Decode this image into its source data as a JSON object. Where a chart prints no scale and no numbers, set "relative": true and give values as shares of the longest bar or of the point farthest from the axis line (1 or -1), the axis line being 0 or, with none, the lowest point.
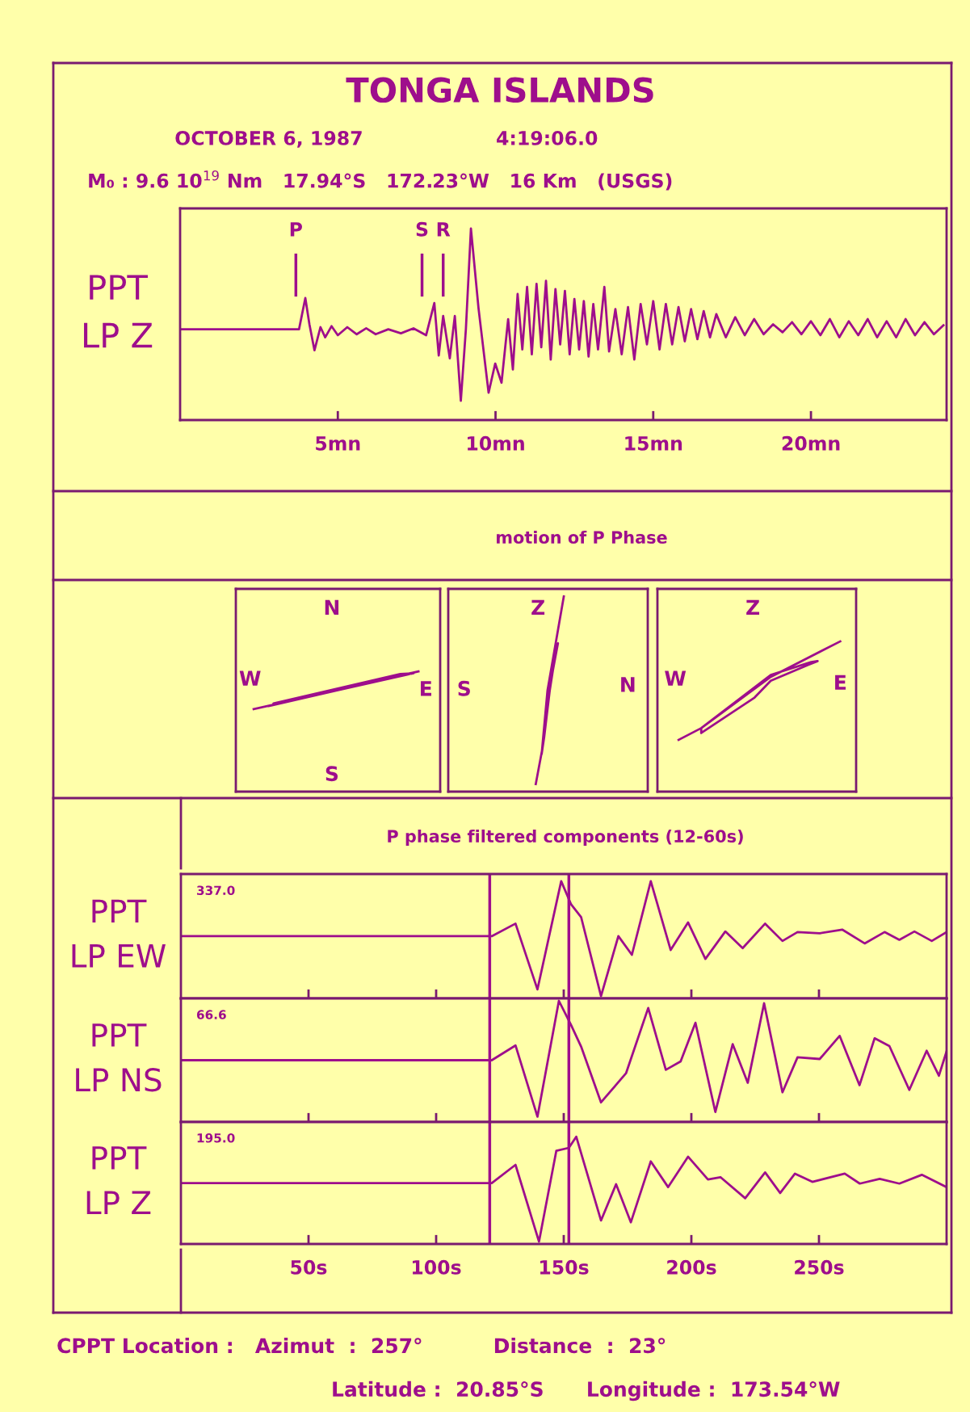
{
  "chart_data": [
    {
      "type": "line",
      "title": "TONGA ISLANDS",
      "subtitle": "OCTOBER 6, 1987                    4:19:06.0\nM₀ : 9.6 10$^{19}$ Nm   17.94°S   172.23°W   16 Km   (USGS)",
      "ylabel": "PPT\nLP Z",
      "relative": true,
      "x": [
        0,
        3.77,
        3.97,
        4.1,
        4.26,
        4.45,
        4.6,
        4.8,
        5.0,
        5.3,
        5.6,
        5.9,
        6.2,
        6.6,
        7.0,
        7.4,
        7.8,
        8.06,
        8.2,
        8.34,
        8.55,
        8.71,
        8.9,
        9.06,
        9.22,
        9.46,
        9.78,
        9.99,
        10.19,
        10.4,
        10.55,
        10.7,
        10.85,
        11.0,
        11.15,
        11.3,
        11.45,
        11.6,
        11.75,
        11.9,
        12.05,
        12.2,
        12.35,
        12.5,
        12.65,
        12.8,
        12.95,
        13.1,
        13.25,
        13.45,
        13.6,
        13.8,
        14.0,
        14.2,
        14.4,
        14.6,
        14.8,
        15.0,
        15.2,
        15.4,
        15.6,
        15.8,
        16.0,
        16.2,
        16.4,
        16.6,
        16.8,
        17.0,
        17.3,
        17.6,
        17.9,
        18.2,
        18.5,
        18.8,
        19.1,
        19.4,
        19.7,
        20.0,
        20.3,
        20.6,
        20.9,
        21.2,
        21.5,
        21.8,
        22.1,
        22.4,
        22.7,
        23.0,
        23.3,
        23.6,
        23.9,
        24.2
      ],
      "series": [
        {
          "color": "#9e0e8c",
          "values": [
            0.474,
            0.474,
            0.637,
            0.5,
            0.364,
            0.485,
            0.432,
            0.49,
            0.443,
            0.485,
            0.448,
            0.479,
            0.448,
            0.474,
            0.453,
            0.479,
            0.443,
            0.611,
            0.337,
            0.543,
            0.322,
            0.543,
            0.101,
            0.474,
            1.0,
            0.585,
            0.143,
            0.295,
            0.195,
            0.527,
            0.264,
            0.658,
            0.369,
            0.695,
            0.343,
            0.711,
            0.38,
            0.727,
            0.316,
            0.684,
            0.395,
            0.674,
            0.343,
            0.632,
            0.369,
            0.621,
            0.332,
            0.606,
            0.369,
            0.695,
            0.358,
            0.579,
            0.343,
            0.59,
            0.316,
            0.606,
            0.395,
            0.621,
            0.369,
            0.606,
            0.395,
            0.59,
            0.411,
            0.579,
            0.422,
            0.569,
            0.432,
            0.553,
            0.432,
            0.537,
            0.443,
            0.527,
            0.448,
            0.5,
            0.458,
            0.511,
            0.448,
            0.516,
            0.443,
            0.527,
            0.432,
            0.516,
            0.443,
            0.527,
            0.432,
            0.516,
            0.432,
            0.527,
            0.443,
            0.511,
            0.448,
            0.495
          ]
        }
      ],
      "xlim": [
        0,
        24.3
      ],
      "xticks": [
        {
          "value": 5,
          "label": "5mn"
        },
        {
          "value": 10,
          "label": "10mn"
        },
        {
          "value": 15,
          "label": "15mn"
        },
        {
          "value": 20,
          "label": "20mn"
        }
      ],
      "tick_labels": "x",
      "ref_lines": [
        {
          "axis": "x",
          "value": 3.67,
          "label": "P"
        },
        {
          "axis": "x",
          "value": 7.67,
          "label": "S"
        },
        {
          "axis": "x",
          "value": 8.34,
          "label": "R"
        }
      ]
    },
    {
      "type": "other",
      "title": "motion of P Phase",
      "annotations": [
        "N",
        "S",
        "W",
        "E"
      ]
    },
    {
      "type": "other",
      "annotations": [
        "Z",
        "S",
        "N"
      ]
    },
    {
      "type": "other",
      "annotations": [
        "Z",
        "W",
        "E"
      ]
    },
    {
      "type": "line",
      "title": "P phase filtered components (12-60s)",
      "ylabel": "PPT\nLP EW",
      "relative": true,
      "annotations": [
        "337.0"
      ],
      "x": [
        0,
        121.8,
        131.1,
        139.7,
        149,
        152.9,
        156.8,
        164.6,
        171.4,
        176.7,
        184.1,
        191.9,
        198.7,
        205.5,
        213.3,
        220.1,
        228.9,
        235.7,
        241.6,
        250.3,
        259.1,
        267.9,
        275.7,
        281.5,
        287.4,
        294.2,
        300
      ],
      "series": [
        {
          "color": "#9e0e8c",
          "values": [
            0.531,
            0.531,
            0.638,
            0.077,
            1.0,
            0.801,
            0.694,
            0.02,
            0.531,
            0.372,
            1.0,
            0.413,
            0.648,
            0.337,
            0.571,
            0.429,
            0.638,
            0.49,
            0.566,
            0.556,
            0.587,
            0.469,
            0.566,
            0.5,
            0.571,
            0.49,
            0.566
          ]
        }
      ],
      "xlim": [
        0,
        300
      ],
      "xticks": [
        {
          "value": 50,
          "label": null
        },
        {
          "value": 100,
          "label": null
        },
        {
          "value": 150,
          "label": null
        },
        {
          "value": 200,
          "label": null
        },
        {
          "value": 250,
          "label": null
        }
      ],
      "tick_labels": false,
      "ref_lines": [
        {
          "axis": "x",
          "value": 121
        },
        {
          "axis": "x",
          "value": 152
        }
      ]
    },
    {
      "type": "line",
      "ylabel": "PPT\nLP NS",
      "relative": true,
      "annotations": [
        "66.6"
      ],
      "x": [
        0,
        121.8,
        131.1,
        139.7,
        148.1,
        152.9,
        156.8,
        164.6,
        174.4,
        183.1,
        190,
        195.8,
        201.6,
        209.4,
        216.2,
        222.1,
        228.5,
        235.7,
        241.6,
        250.3,
        258.1,
        265.9,
        271.8,
        277.6,
        285.4,
        292.2,
        297,
        300
      ],
      "series": [
        {
          "color": "#9e0e8c",
          "values": [
            0.51,
            0.51,
            0.632,
            0.044,
            1.0,
            0.799,
            0.623,
            0.162,
            0.402,
            0.941,
            0.431,
            0.5,
            0.819,
            0.083,
            0.642,
            0.324,
            0.98,
            0.245,
            0.534,
            0.52,
            0.711,
            0.304,
            0.691,
            0.627,
            0.265,
            0.588,
            0.382,
            0.583
          ]
        }
      ],
      "xlim": [
        0,
        300
      ],
      "xticks": [
        {
          "value": 50,
          "label": null
        },
        {
          "value": 100,
          "label": null
        },
        {
          "value": 150,
          "label": null
        },
        {
          "value": 200,
          "label": null
        },
        {
          "value": 250,
          "label": null
        }
      ],
      "tick_labels": false,
      "ref_lines": [
        {
          "axis": "x",
          "value": 121
        },
        {
          "axis": "x",
          "value": 152
        }
      ]
    },
    {
      "type": "line",
      "ylabel": "PPT\nLP Z",
      "relative": true,
      "annotations": [
        "195.0",
        "CPPT Location :   Azimut  :  257°          Distance  :  23°",
        "Latitude :  20.85°S      Longitude :  173.54°W"
      ],
      "x": [
        0,
        121.8,
        131.1,
        140.3,
        147.1,
        152,
        154.9,
        164.6,
        170.5,
        176.3,
        184.1,
        190.9,
        198.7,
        206.5,
        211.4,
        221.1,
        228.9,
        234.8,
        240.6,
        247.4,
        260.1,
        266,
        273.8,
        281.5,
        290.3,
        300
      ],
      "series": [
        {
          "color": "#9e0e8c",
          "values": [
            0.568,
            0.568,
            0.738,
            0.022,
            0.869,
            0.896,
            1.0,
            0.219,
            0.557,
            0.202,
            0.77,
            0.53,
            0.814,
            0.601,
            0.623,
            0.426,
            0.667,
            0.475,
            0.656,
            0.579,
            0.656,
            0.563,
            0.607,
            0.563,
            0.645,
            0.53
          ]
        }
      ],
      "xlim": [
        0,
        300
      ],
      "xticks": [
        {
          "value": 50,
          "label": "50s"
        },
        {
          "value": 100,
          "label": "100s"
        },
        {
          "value": 150,
          "label": "150s"
        },
        {
          "value": 200,
          "label": "200s"
        },
        {
          "value": 250,
          "label": "250s"
        }
      ],
      "tick_labels": "x",
      "ref_lines": [
        {
          "axis": "x",
          "value": 121
        },
        {
          "axis": "x",
          "value": 152
        }
      ]
    }
  ]
}
